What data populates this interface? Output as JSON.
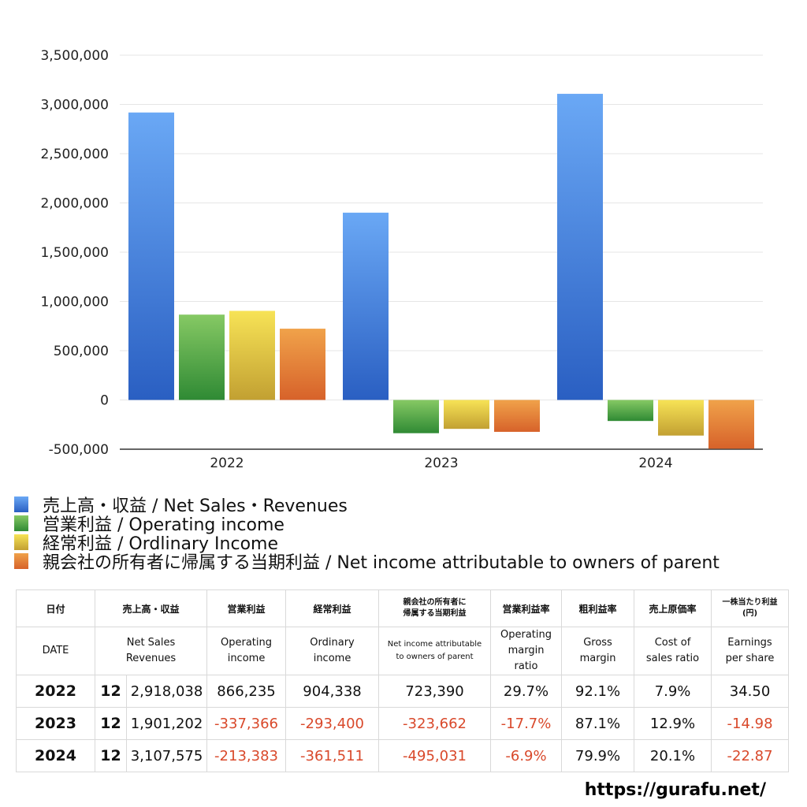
{
  "chart_data": {
    "type": "bar",
    "categories": [
      "2022",
      "2023",
      "2024"
    ],
    "series": [
      {
        "name": "売上高・収益 / Net Sales・Revenues",
        "values": [
          2918038,
          1901202,
          3107575
        ]
      },
      {
        "name": "営業利益 / Operating income",
        "values": [
          866235,
          -337366,
          -213383
        ]
      },
      {
        "name": "経常利益 / Ordlinary Income",
        "values": [
          904338,
          -293400,
          -361511
        ]
      },
      {
        "name": "親会社の所有者に帰属する当期利益 / Net income attributable to owners of parent",
        "values": [
          723390,
          -323662,
          -495031
        ]
      }
    ],
    "ylim": [
      -500000,
      3500000
    ],
    "yticks": [
      3500000,
      3000000,
      2500000,
      2000000,
      1500000,
      1000000,
      500000,
      0,
      -500000
    ],
    "ytick_labels": [
      "3,500,000",
      "3,000,000",
      "2,500,000",
      "2,000,000",
      "1,500,000",
      "1,000,000",
      "500,000",
      "0",
      "-500,000"
    ],
    "legend_position": "bottom-left",
    "colors": [
      "#3f7fe0",
      "#4fa043",
      "#e0c43a",
      "#e0762f"
    ]
  },
  "legend": {
    "items": [
      "売上高・収益 / Net Sales・Revenues",
      "営業利益 / Operating income",
      "経常利益 / Ordlinary Income",
      "親会社の所有者に帰属する当期利益 / Net income attributable to owners of parent"
    ]
  },
  "table": {
    "header_jp": {
      "date": "日付",
      "sales": "売上高・収益",
      "operating": "営業利益",
      "ordinary": "経常利益",
      "net_line1": "親会社の所有者に",
      "net_line2": "帰属する当期利益",
      "op_margin": "営業利益率",
      "gross": "粗利益率",
      "cost": "売上原価率",
      "eps_line1": "一株当たり利益",
      "eps_line2": "(円)"
    },
    "header_en": {
      "date": "DATE",
      "sales_l1": "Net Sales",
      "sales_l2": "Revenues",
      "operating_l1": "Operating",
      "operating_l2": "income",
      "ordinary_l1": "Ordinary",
      "ordinary_l2": "income",
      "net_l1": "Net income attributable",
      "net_l2": "to owners of parent",
      "op_margin_l1": "Operating",
      "op_margin_l2": "margin",
      "op_margin_l3": "ratio",
      "gross_l1": "Gross",
      "gross_l2": "margin",
      "cost_l1": "Cost of",
      "cost_l2": "sales ratio",
      "eps_l1": "Earnings",
      "eps_l2": "per share"
    },
    "rows": [
      {
        "year": "2022",
        "month": "12",
        "sales": "2,918,038",
        "operating": "866,235",
        "ordinary": "904,338",
        "net": "723,390",
        "op_margin": "29.7%",
        "gross": "92.1%",
        "cost": "7.9%",
        "eps": "34.50"
      },
      {
        "year": "2023",
        "month": "12",
        "sales": "1,901,202",
        "operating": "-337,366",
        "ordinary": "-293,400",
        "net": "-323,662",
        "op_margin": "-17.7%",
        "gross": "87.1%",
        "cost": "12.9%",
        "eps": "-14.98"
      },
      {
        "year": "2024",
        "month": "12",
        "sales": "3,107,575",
        "operating": "-213,383",
        "ordinary": "-361,511",
        "net": "-495,031",
        "op_margin": "-6.9%",
        "gross": "79.9%",
        "cost": "20.1%",
        "eps": "-22.87"
      }
    ]
  },
  "footer": {
    "url": "https://gurafu.net/"
  }
}
